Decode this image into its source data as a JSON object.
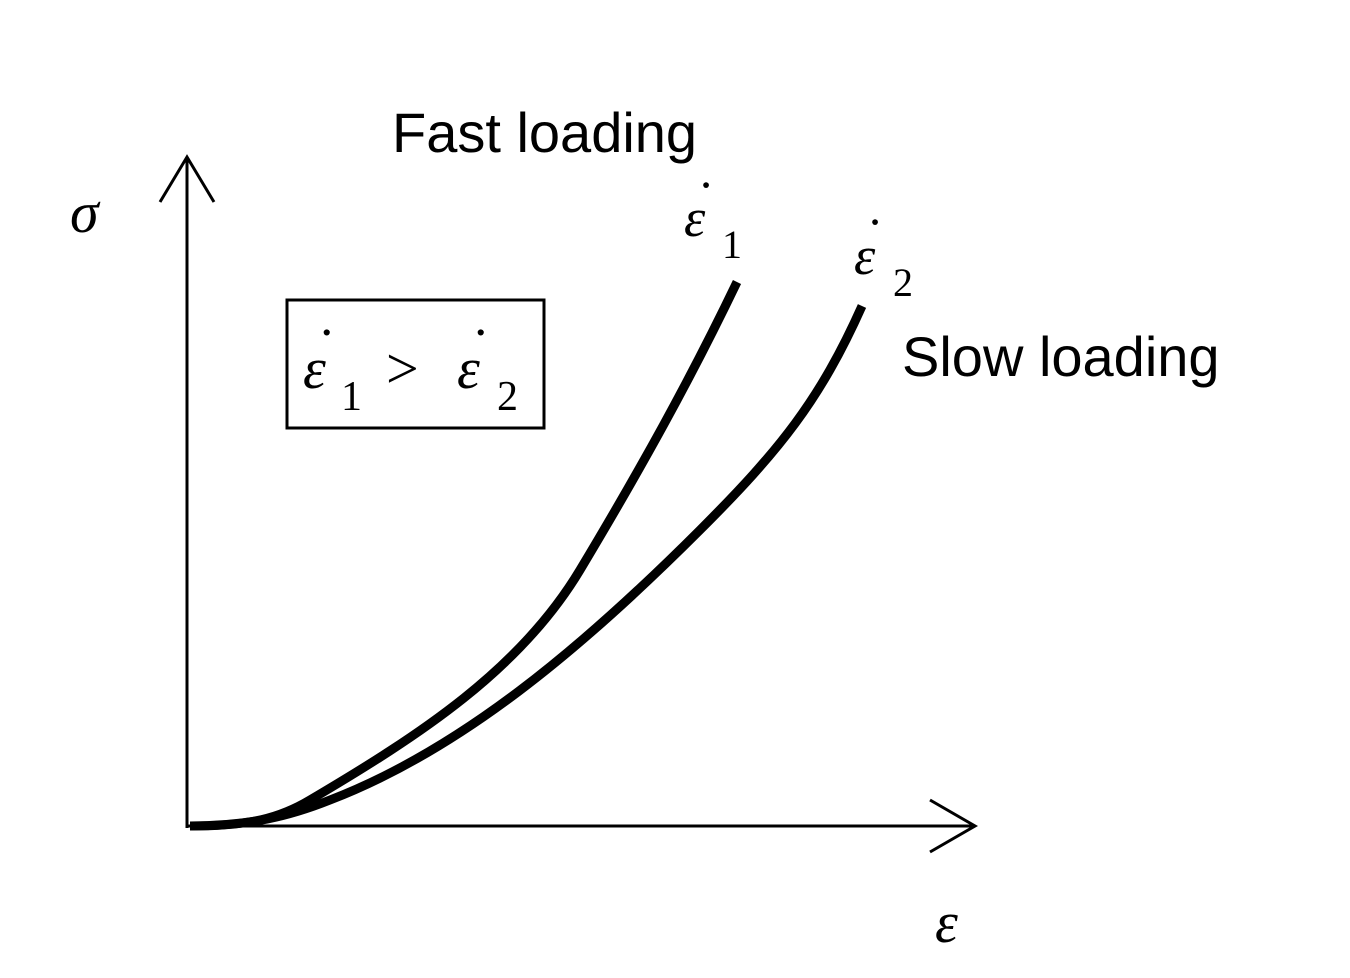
{
  "axes": {
    "y_symbol": "σ",
    "x_symbol": "ε"
  },
  "labels": {
    "fast": "Fast loading",
    "slow": "Slow loading"
  },
  "curves": {
    "curve1": {
      "symbol": "ε",
      "dot": "˙",
      "subscript": "1"
    },
    "curve2": {
      "symbol": "ε",
      "dot": "˙",
      "subscript": "2"
    }
  },
  "relation": {
    "left_symbol": "ε",
    "left_dot": "˙",
    "left_subscript": "1",
    "operator": ">",
    "right_symbol": "ε",
    "right_dot": "˙",
    "right_subscript": "2"
  },
  "colors": {
    "ink": "#000000",
    "background": "#ffffff"
  }
}
